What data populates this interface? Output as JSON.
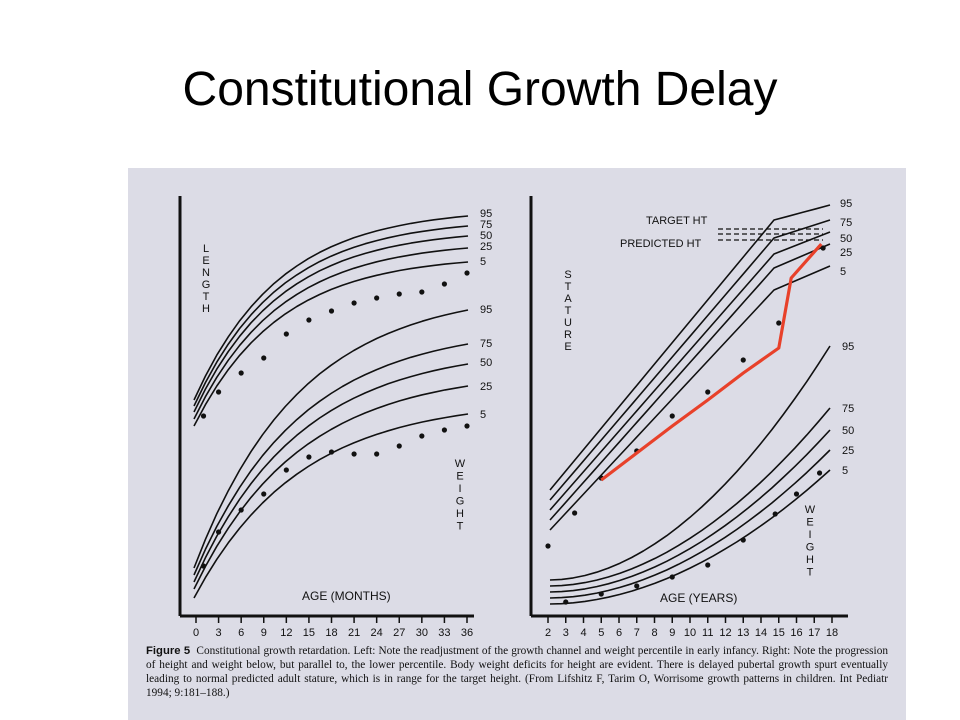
{
  "slide": {
    "title": "Constitutional Growth Delay"
  },
  "figure": {
    "caption_label": "Figure 5",
    "caption_text": "Constitutional growth retardation. Left: Note the readjustment of the growth channel and weight percentile in early infancy. Right: Note the progression of height and weight below, but parallel to, the lower percentile. Body weight deficits for height are evident. There is delayed pubertal growth spurt eventually leading to normal predicted adult stature, which is in range for the target height. (From Lifshitz F, Tarim O, Worrisome growth patterns in children. Int Pediatr 1994; 9:181–188.)"
  },
  "colors": {
    "curve": "#111111",
    "highlight": "#e8412a",
    "scan_bg": "#dcdce6"
  },
  "chart_data": [
    {
      "type": "line",
      "panel": "left",
      "xlabel": "AGE (MONTHS)",
      "x_ticks": [
        0,
        3,
        6,
        9,
        12,
        15,
        18,
        21,
        24,
        27,
        30,
        33,
        36
      ],
      "length_label": "LENGTH",
      "weight_label": "WEIGHT",
      "length_percentiles": [
        "95",
        "75",
        "50",
        "25",
        "5"
      ],
      "weight_percentiles": [
        "95",
        "75",
        "50",
        "25",
        "5"
      ],
      "length_dots": [
        [
          1,
          52
        ],
        [
          3,
          58
        ],
        [
          6,
          64
        ],
        [
          9,
          69
        ],
        [
          12,
          73
        ],
        [
          15,
          76
        ],
        [
          18,
          79
        ],
        [
          21,
          82
        ],
        [
          24,
          84
        ],
        [
          27,
          86
        ],
        [
          30,
          88
        ],
        [
          33,
          90
        ],
        [
          36,
          92
        ]
      ],
      "weight_dots": [
        [
          1,
          6
        ],
        [
          3,
          10
        ],
        [
          6,
          14
        ],
        [
          9,
          18
        ],
        [
          12,
          22
        ],
        [
          15,
          23.5
        ],
        [
          18,
          24.5
        ],
        [
          21,
          25
        ],
        [
          24,
          26
        ],
        [
          27,
          27
        ],
        [
          30,
          28
        ],
        [
          33,
          29
        ],
        [
          36,
          30
        ]
      ]
    },
    {
      "type": "line",
      "panel": "right",
      "xlabel": "AGE (YEARS)",
      "x_ticks": [
        2,
        3,
        4,
        5,
        6,
        7,
        8,
        9,
        10,
        11,
        12,
        13,
        14,
        15,
        16,
        17,
        18
      ],
      "stature_label": "STATURE",
      "weight_label": "WEIGHT",
      "target_label": "TARGET HT",
      "predicted_label": "PREDICTED HT",
      "stature_percentiles": [
        "95",
        "75",
        "50",
        "25",
        "5"
      ],
      "weight_percentiles": [
        "95",
        "75",
        "50",
        "25",
        "5"
      ],
      "stature_dots": [
        [
          2,
          60
        ],
        [
          3.5,
          66
        ],
        [
          5,
          70
        ],
        [
          7,
          76
        ],
        [
          9,
          80
        ],
        [
          11,
          85
        ],
        [
          13,
          90
        ],
        [
          15,
          95
        ],
        [
          17.5,
          106
        ]
      ],
      "highlight_line": [
        [
          5,
          70
        ],
        [
          7,
          75
        ],
        [
          9,
          79
        ],
        [
          11,
          84
        ],
        [
          13,
          89
        ],
        [
          15,
          95
        ],
        [
          15.7,
          100
        ],
        [
          17.4,
          107
        ]
      ],
      "weight_dots": [
        [
          3,
          2
        ],
        [
          5,
          4
        ],
        [
          7,
          5
        ],
        [
          9,
          7
        ],
        [
          11,
          9
        ],
        [
          13,
          12
        ],
        [
          14.8,
          16
        ],
        [
          16,
          19
        ],
        [
          17.3,
          22
        ]
      ]
    }
  ]
}
